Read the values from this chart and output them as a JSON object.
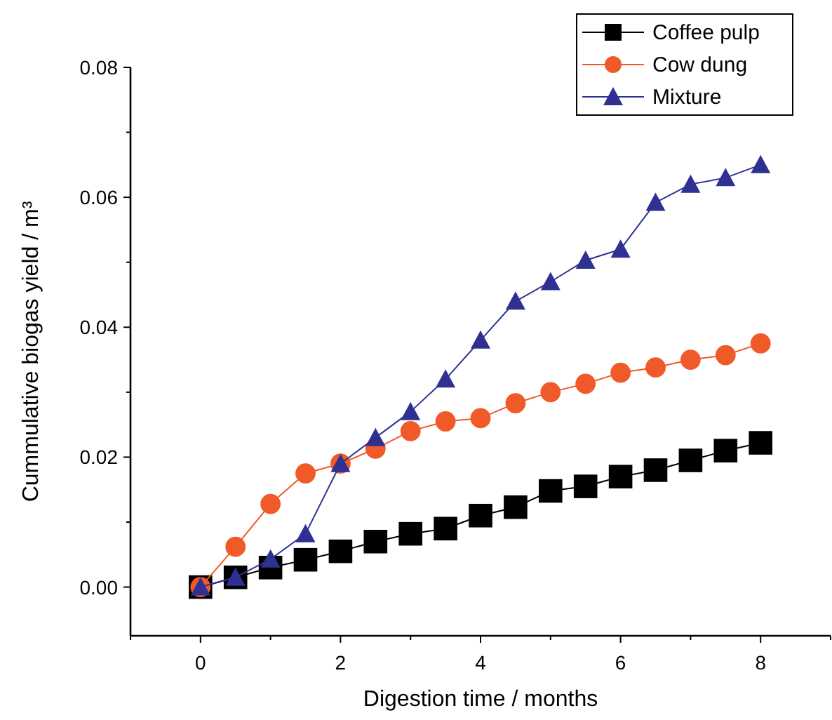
{
  "chart_data": {
    "type": "line",
    "xlabel": "Digestion time / months",
    "ylabel": "Cummulative biogas yield / m³",
    "x": [
      0,
      0.5,
      1,
      1.5,
      2,
      2.5,
      3,
      3.5,
      4,
      4.5,
      5,
      5.5,
      6,
      6.5,
      7,
      7.5,
      8
    ],
    "series": [
      {
        "name": "Coffee pulp",
        "color": "#000000",
        "marker": "square",
        "values": [
          0,
          0.0015,
          0.003,
          0.0042,
          0.0055,
          0.007,
          0.0082,
          0.009,
          0.011,
          0.0123,
          0.0148,
          0.0155,
          0.017,
          0.018,
          0.0195,
          0.021,
          0.0222
        ]
      },
      {
        "name": "Cow dung",
        "color": "#f05a28",
        "marker": "circle",
        "values": [
          0,
          0.0062,
          0.0128,
          0.0175,
          0.019,
          0.0213,
          0.024,
          0.0255,
          0.026,
          0.0283,
          0.03,
          0.0313,
          0.033,
          0.0338,
          0.035,
          0.0357,
          0.0375
        ]
      },
      {
        "name": "Mixture",
        "color": "#2e3192",
        "marker": "triangle",
        "values": [
          0,
          0.0015,
          0.0043,
          0.0082,
          0.019,
          0.023,
          0.027,
          0.032,
          0.038,
          0.044,
          0.047,
          0.0503,
          0.052,
          0.0592,
          0.062,
          0.063,
          0.065
        ]
      }
    ],
    "xlim": [
      -1,
      9
    ],
    "xticks": [
      {
        "value": -1,
        "label": null
      },
      0,
      {
        "value": 1,
        "label": null
      },
      2,
      {
        "value": 3,
        "label": null
      },
      4,
      {
        "value": 5,
        "label": null
      },
      6,
      {
        "value": 7,
        "label": null
      },
      8,
      {
        "value": 9,
        "label": null
      }
    ],
    "ylim": [
      -0.0075,
      0.08
    ],
    "yticks": [
      {
        "value": 0,
        "label": "0.00"
      },
      {
        "value": 0.01,
        "label": null
      },
      {
        "value": 0.02,
        "label": "0.02"
      },
      {
        "value": 0.03,
        "label": null
      },
      {
        "value": 0.04,
        "label": "0.04"
      },
      {
        "value": 0.05,
        "label": null
      },
      {
        "value": 0.06,
        "label": "0.06"
      },
      {
        "value": 0.07,
        "label": null
      },
      {
        "value": 0.08,
        "label": "0.08"
      }
    ],
    "grid": false,
    "legend": "top right",
    "line_style": "solid"
  }
}
